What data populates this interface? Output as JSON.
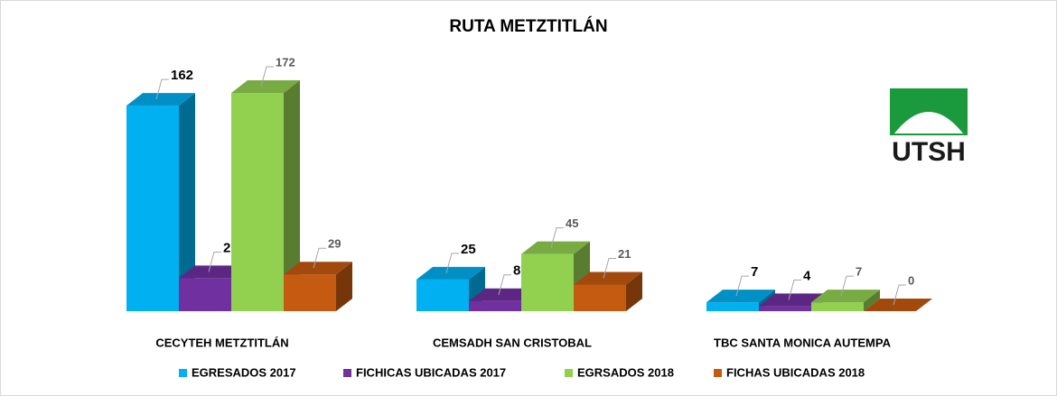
{
  "chart_data": {
    "type": "bar3d",
    "title": "RUTA METZTITLÁN",
    "categories": [
      "CECYTEH METZTITLÁN",
      "CEMSADH SAN CRISTOBAL",
      "TBC SANTA MONICA AUTEMPA"
    ],
    "series": [
      {
        "name": "EGRESADOS 2017",
        "color": "#00b0f0",
        "values": [
          162,
          25,
          7
        ]
      },
      {
        "name": "FICHICAS UBICADAS 2017",
        "color": "#7030a0",
        "values": [
          26,
          8,
          4
        ]
      },
      {
        "name": "EGRSADOS 2018",
        "color": "#92d050",
        "values": [
          172,
          45,
          7
        ]
      },
      {
        "name": "FICHAS UBICADAS  2018",
        "color": "#c55a11",
        "values": [
          29,
          21,
          0
        ]
      }
    ],
    "legend": "bottom"
  },
  "logo_text": "UTSH"
}
